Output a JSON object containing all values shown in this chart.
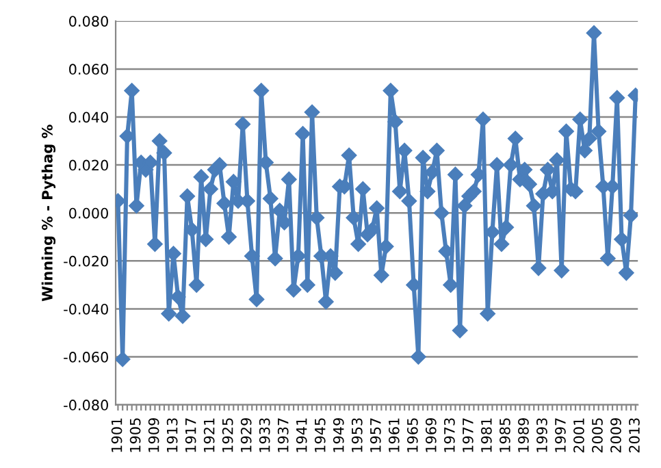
{
  "chart_data": {
    "type": "line",
    "ylabel": "Winning % - Pythag %",
    "categories": [
      "1901",
      null,
      null,
      null,
      "1905",
      null,
      null,
      null,
      "1909",
      null,
      null,
      null,
      "1913",
      null,
      null,
      null,
      "1917",
      null,
      null,
      null,
      "1921",
      null,
      null,
      null,
      "1925",
      null,
      null,
      null,
      "1929",
      null,
      null,
      null,
      "1933",
      null,
      null,
      null,
      "1937",
      null,
      null,
      null,
      "1941",
      null,
      null,
      null,
      "1945",
      null,
      null,
      null,
      "1949",
      null,
      null,
      null,
      "1953",
      null,
      null,
      null,
      "1957",
      null,
      null,
      null,
      "1961",
      null,
      null,
      null,
      "1965",
      null,
      null,
      null,
      "1969",
      null,
      null,
      null,
      "1973",
      null,
      null,
      null,
      "1977",
      null,
      null,
      null,
      "1981",
      null,
      null,
      null,
      "1985",
      null,
      null,
      null,
      "1989",
      null,
      null,
      null,
      "1993",
      null,
      null,
      null,
      "1997",
      null,
      null,
      null,
      "2001",
      null,
      null,
      null,
      "2005",
      null,
      null,
      null,
      "2009",
      null,
      null,
      null,
      "2013"
    ],
    "series": [
      {
        "color": "#4a7ebb",
        "values": [
          0.005,
          -0.061,
          0.032,
          0.051,
          0.003,
          0.021,
          0.018,
          0.021,
          -0.013,
          0.03,
          0.025,
          -0.042,
          -0.017,
          -0.035,
          -0.043,
          0.007,
          -0.007,
          -0.03,
          0.015,
          -0.011,
          0.01,
          0.018,
          0.02,
          0.004,
          -0.01,
          0.013,
          0.005,
          0.037,
          0.005,
          -0.018,
          -0.036,
          0.051,
          0.021,
          0.006,
          -0.019,
          0.001,
          -0.004,
          0.014,
          -0.032,
          -0.018,
          0.033,
          -0.03,
          0.042,
          -0.002,
          -0.018,
          -0.037,
          -0.018,
          -0.025,
          0.011,
          0.011,
          0.024,
          -0.002,
          -0.013,
          0.01,
          -0.009,
          -0.007,
          0.002,
          -0.026,
          -0.014,
          0.051,
          0.038,
          0.009,
          0.026,
          0.005,
          -0.03,
          -0.06,
          0.023,
          0.009,
          0.017,
          0.026,
          0.0,
          -0.016,
          -0.03,
          0.016,
          -0.049,
          0.003,
          0.007,
          0.009,
          0.016,
          0.039,
          -0.042,
          -0.008,
          0.02,
          -0.013,
          -0.006,
          0.02,
          0.031,
          0.014,
          0.018,
          0.012,
          0.003,
          -0.023,
          0.008,
          0.018,
          0.009,
          0.022,
          -0.024,
          0.034,
          0.01,
          0.009,
          0.039,
          0.026,
          0.031,
          0.075,
          0.034,
          0.011,
          -0.019,
          0.011,
          0.048,
          -0.011,
          -0.025,
          -0.001,
          0.049
        ]
      }
    ],
    "ylim": [
      -0.08,
      0.08
    ],
    "yticks": [
      {
        "value": -0.08,
        "label": "-0.080"
      },
      {
        "value": -0.06,
        "label": "-0.060"
      },
      {
        "value": -0.04,
        "label": "-0.040"
      },
      {
        "value": -0.02,
        "label": "-0.020"
      },
      {
        "value": 0,
        "label": "0.000"
      },
      {
        "value": 0.02,
        "label": "0.020"
      },
      {
        "value": 0.04,
        "label": "0.040"
      },
      {
        "value": 0.06,
        "label": "0.060"
      },
      {
        "value": 0.08,
        "label": "0.080"
      }
    ],
    "grid": "y",
    "marker": "diamond",
    "line_style": "solid"
  }
}
